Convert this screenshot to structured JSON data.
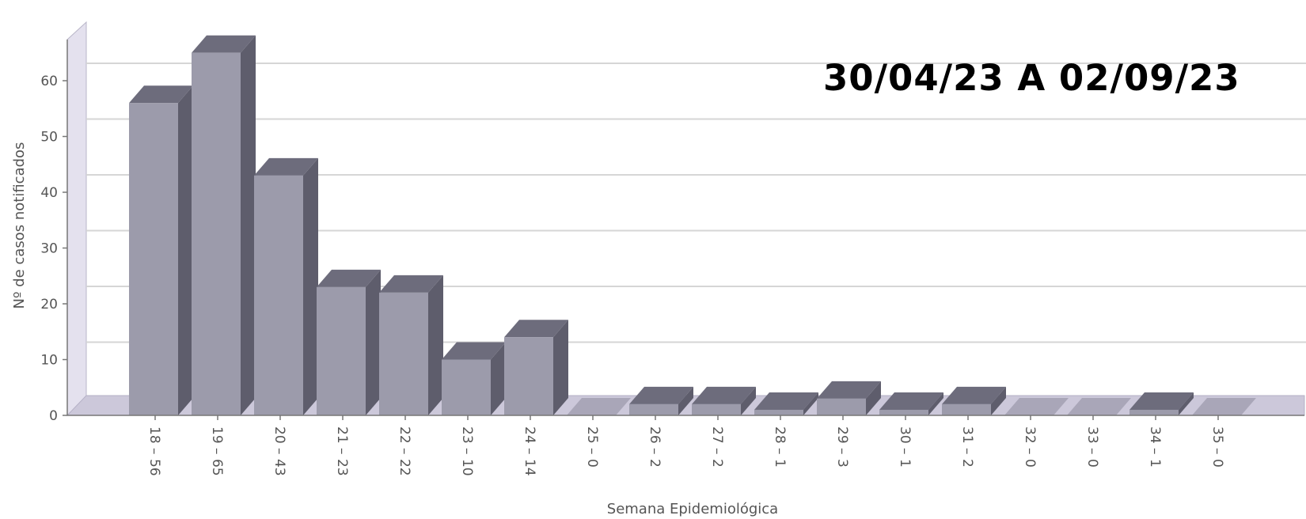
{
  "period_label": "30/04/23 A 02/09/23",
  "chart_data": {
    "type": "bar",
    "title": "",
    "xlabel": "Semana Epidemiológica",
    "ylabel": "Nº de casos notificados",
    "ylim": [
      0,
      65
    ],
    "yticks": [
      0,
      10,
      20,
      30,
      40,
      50,
      60
    ],
    "grid": true,
    "categories": [
      "18 – 56",
      "19 – 65",
      "20 – 43",
      "21 – 23",
      "22 – 22",
      "23 – 10",
      "24 – 14",
      "25 – 0",
      "26 – 2",
      "27 – 2",
      "28 – 1",
      "29 – 3",
      "30 – 1",
      "31 – 2",
      "32 – 0",
      "33 – 0",
      "34 – 1",
      "35 – 0"
    ],
    "values": [
      56,
      65,
      43,
      23,
      22,
      10,
      14,
      0,
      2,
      2,
      1,
      3,
      1,
      2,
      0,
      0,
      1,
      0
    ],
    "colors": {
      "bar_front": "#9c9bab",
      "bar_side": "#5e5d6c",
      "bar_top": "#6d6c7c",
      "wall": "#e4e1ee",
      "floor": "#ccc8da",
      "grid": "#d6d6d6"
    }
  }
}
